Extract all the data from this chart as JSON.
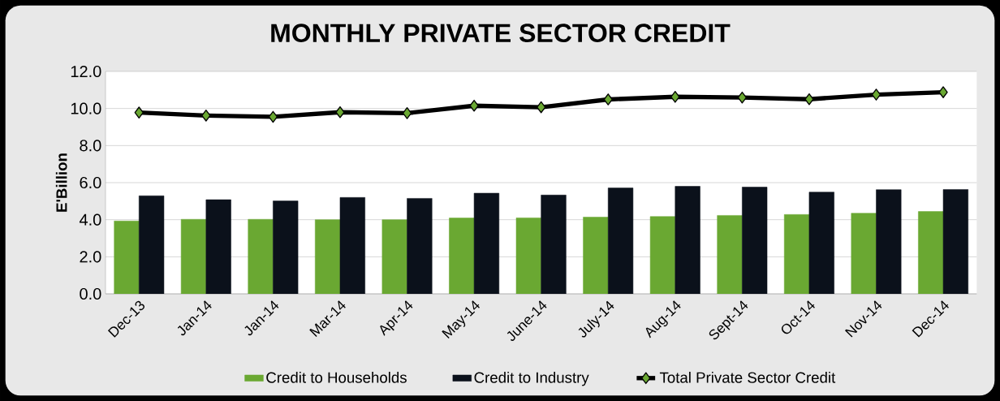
{
  "chart_data": {
    "type": "bar",
    "title": "MONTHLY PRIVATE SECTOR CREDIT",
    "ylabel": "E'Billion",
    "categories": [
      "Dec-13",
      "Jan-14",
      "Jan-14",
      "Mar-14",
      "Apr-14",
      "May-14",
      "June-14",
      "July-14",
      "Aug-14",
      "Sept-14",
      "Oct-14",
      "Nov-14",
      "Dec-14"
    ],
    "series": [
      {
        "name": "Credit to Households",
        "color": "#6aa832",
        "values": [
          3.93,
          4.02,
          4.02,
          4.0,
          4.0,
          4.09,
          4.1,
          4.14,
          4.17,
          4.23,
          4.28,
          4.35,
          4.44
        ]
      },
      {
        "name": "Credit to Industry",
        "color": "#0b111b",
        "values": [
          5.29,
          5.08,
          5.01,
          5.2,
          5.15,
          5.43,
          5.33,
          5.71,
          5.8,
          5.76,
          5.49,
          5.62,
          5.63
        ]
      },
      {
        "name": "Total Private Sector Credit",
        "type": "line",
        "color": "#000000",
        "marker": "diamond",
        "line_style": "solid",
        "values": [
          9.78,
          9.62,
          9.55,
          9.8,
          9.75,
          10.15,
          10.07,
          10.49,
          10.63,
          10.59,
          10.5,
          10.75,
          10.88
        ]
      }
    ],
    "ylim": [
      0,
      12
    ],
    "yticks": [
      {
        "value": 0,
        "label": "0.0"
      },
      {
        "value": 2,
        "label": "2.0"
      },
      {
        "value": 4,
        "label": "4.0"
      },
      {
        "value": 6,
        "label": "6.0"
      },
      {
        "value": 8,
        "label": "8.0"
      },
      {
        "value": 10,
        "label": "10.0"
      },
      {
        "value": 12,
        "label": "12.0"
      }
    ],
    "grid": "y",
    "legend": "bottom"
  }
}
